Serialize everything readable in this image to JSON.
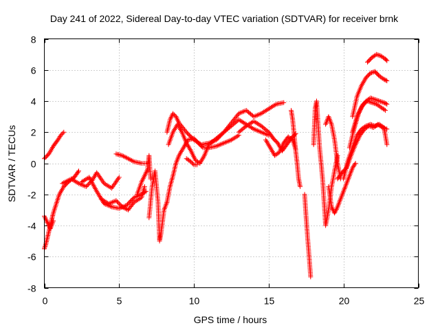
{
  "chart_data": {
    "type": "scatter",
    "title": "Day 241 of 2022, Sidereal Day-to-day VTEC variation (SDTVAR) for receiver brnk",
    "xlabel": "GPS time / hours",
    "ylabel": "SDTVAR / TECUs",
    "xlim": [
      0,
      25
    ],
    "ylim": [
      -8,
      8
    ],
    "xticks": [
      0,
      5,
      10,
      15,
      20,
      25
    ],
    "yticks": [
      -8,
      -6,
      -4,
      -2,
      0,
      2,
      4,
      6,
      8
    ],
    "xtick_labels": [
      "0",
      "5",
      "10",
      "15",
      "20",
      "25"
    ],
    "ytick_labels": [
      "-8",
      "-6",
      "-4",
      "-2",
      "0",
      "2",
      "4",
      "6",
      "8"
    ],
    "grid": true,
    "marker": "plus",
    "color": "#ff0000",
    "series": [
      {
        "name": "s1",
        "x": [
          0.0,
          0.3,
          0.6,
          0.9,
          1.1,
          1.3
        ],
        "y": [
          0.3,
          0.6,
          1.1,
          1.5,
          1.8,
          2.0
        ]
      },
      {
        "name": "s2",
        "x": [
          0.0,
          0.1,
          0.2,
          0.3,
          0.4,
          0.5,
          0.6,
          0.8,
          1.0,
          1.3,
          1.6,
          2.0,
          2.3
        ],
        "y": [
          -5.5,
          -5.2,
          -4.8,
          -4.4,
          -4.0,
          -3.6,
          -3.2,
          -2.6,
          -2.0,
          -1.5,
          -1.2,
          -0.9,
          -0.5
        ]
      },
      {
        "name": "s3",
        "x": [
          0.0,
          0.2,
          0.4,
          0.6
        ],
        "y": [
          -3.4,
          -3.8,
          -4.2,
          -3.7
        ]
      },
      {
        "name": "s4",
        "x": [
          1.2,
          1.8,
          2.3,
          2.8,
          3.2,
          3.5,
          4.0,
          4.5,
          5.0
        ],
        "y": [
          -1.3,
          -1.0,
          -1.3,
          -1.5,
          -1.1,
          -0.6,
          -1.3,
          -1.6,
          -0.9
        ]
      },
      {
        "name": "s5",
        "x": [
          2.5,
          3.0,
          3.5,
          4.0,
          4.5,
          5.0,
          5.5,
          6.0,
          6.5,
          6.8
        ],
        "y": [
          -1.2,
          -0.9,
          -1.8,
          -2.6,
          -2.8,
          -2.9,
          -2.7,
          -2.2,
          -2.0,
          -1.8
        ]
      },
      {
        "name": "s6",
        "x": [
          3.8,
          4.3,
          4.8,
          5.2,
          5.6,
          6.0,
          6.5,
          6.7
        ],
        "y": [
          -2.3,
          -2.6,
          -2.4,
          -2.8,
          -3.0,
          -2.5,
          -2.2,
          -1.5
        ]
      },
      {
        "name": "s7",
        "x": [
          4.8,
          5.2,
          5.6,
          6.0,
          6.5,
          6.9
        ],
        "y": [
          0.6,
          0.5,
          0.3,
          0.1,
          0.0,
          0.0
        ]
      },
      {
        "name": "s8",
        "x": [
          6.2,
          6.5,
          6.7,
          6.9,
          7.0,
          7.1
        ],
        "y": [
          -2.0,
          -1.2,
          -0.8,
          -0.4,
          0.5,
          -1.0
        ]
      },
      {
        "name": "s9",
        "x": [
          7.0,
          7.2,
          7.4,
          7.6,
          7.7,
          7.8,
          8.0,
          8.2
        ],
        "y": [
          -3.5,
          -1.5,
          -0.5,
          -2.5,
          -5.0,
          -4.5,
          -3.0,
          -2.5
        ]
      },
      {
        "name": "s10",
        "x": [
          8.2,
          8.4,
          8.6,
          8.8,
          9.0,
          9.3,
          9.6,
          10.0,
          10.3,
          10.6,
          11.0,
          11.5,
          12.0,
          12.5,
          13.0
        ],
        "y": [
          -2.5,
          -1.5,
          -0.8,
          0.0,
          0.5,
          1.0,
          1.5,
          1.6,
          1.3,
          1.0,
          1.0,
          1.1,
          1.3,
          1.5,
          1.8
        ]
      },
      {
        "name": "s11",
        "x": [
          8.2,
          8.4,
          8.6,
          8.8,
          9.0,
          9.5,
          10.0,
          10.5,
          11.0,
          11.5,
          12.0,
          12.5,
          13.0,
          13.5,
          14.0,
          14.5,
          15.0,
          15.5,
          16.0
        ],
        "y": [
          2.0,
          2.8,
          3.2,
          3.0,
          2.6,
          2.0,
          1.5,
          1.2,
          1.3,
          1.5,
          2.0,
          2.6,
          3.2,
          3.4,
          3.0,
          3.2,
          3.5,
          3.8,
          3.9
        ]
      },
      {
        "name": "s12",
        "x": [
          8.3,
          8.6,
          8.9,
          9.2,
          9.5,
          9.8,
          10.1,
          10.4,
          10.7,
          11.0,
          11.5,
          12.0,
          12.5,
          13.0,
          13.5,
          14.0,
          14.5,
          15.0
        ],
        "y": [
          1.2,
          2.0,
          2.5,
          2.0,
          1.3,
          0.8,
          0.2,
          0.0,
          0.5,
          1.2,
          1.6,
          2.0,
          2.4,
          2.8,
          2.5,
          2.2,
          2.0,
          1.8
        ]
      },
      {
        "name": "s13",
        "x": [
          9.5,
          9.8,
          10.0,
          10.2
        ],
        "y": [
          0.3,
          0.1,
          -0.1,
          -0.1
        ]
      },
      {
        "name": "s14",
        "x": [
          13.0,
          13.5,
          14.0,
          14.5,
          15.0,
          15.3,
          15.6,
          15.9,
          16.2,
          16.5,
          16.8
        ],
        "y": [
          2.0,
          2.4,
          2.7,
          2.4,
          2.0,
          1.6,
          1.3,
          0.8,
          1.2,
          1.6,
          1.9
        ]
      },
      {
        "name": "s15",
        "x": [
          14.8,
          15.1,
          15.4,
          15.7,
          16.0,
          16.3,
          16.6,
          16.8
        ],
        "y": [
          1.5,
          1.0,
          0.5,
          0.7,
          1.3,
          1.7,
          1.5,
          0.9
        ]
      },
      {
        "name": "s16",
        "x": [
          16.5,
          16.6,
          16.7,
          16.8,
          16.9,
          17.0,
          17.1
        ],
        "y": [
          3.4,
          2.8,
          1.8,
          0.8,
          0.0,
          -1.0,
          -1.5
        ]
      },
      {
        "name": "s17",
        "x": [
          17.4,
          17.5,
          17.6,
          17.7,
          17.8
        ],
        "y": [
          -2.0,
          -3.5,
          -4.8,
          -6.0,
          -7.3
        ]
      },
      {
        "name": "s18",
        "x": [
          18.0,
          18.1,
          18.2,
          18.3,
          18.4,
          18.5,
          18.6,
          18.7,
          18.8,
          19.0,
          19.2,
          19.4,
          19.6
        ],
        "y": [
          1.2,
          3.5,
          4.0,
          2.5,
          1.0,
          0.0,
          -1.0,
          -2.5,
          -4.0,
          -3.0,
          -1.5,
          -0.5,
          0.5
        ]
      },
      {
        "name": "s19",
        "x": [
          18.8,
          19.0,
          19.2,
          19.4,
          19.6,
          19.8
        ],
        "y": [
          2.5,
          3.0,
          2.5,
          1.5,
          0.0,
          -1.0
        ]
      },
      {
        "name": "s20",
        "x": [
          19.0,
          19.2,
          19.4,
          19.6,
          19.8,
          20.0,
          20.2,
          20.4,
          20.6,
          20.8
        ],
        "y": [
          -1.5,
          -2.8,
          -3.2,
          -2.8,
          -2.3,
          -1.8,
          -1.3,
          -0.8,
          -0.3,
          0.0
        ]
      },
      {
        "name": "s21",
        "x": [
          19.6,
          19.9,
          20.2,
          20.5,
          20.8,
          21.1,
          21.4,
          21.7,
          22.0,
          22.3,
          22.6,
          22.9
        ],
        "y": [
          -1.0,
          -0.6,
          -0.3,
          0.5,
          1.2,
          1.8,
          2.2,
          2.4,
          2.3,
          2.5,
          2.3,
          2.2
        ]
      },
      {
        "name": "s22",
        "x": [
          20.0,
          20.3,
          20.6,
          20.9,
          21.2,
          21.5,
          21.8,
          22.1,
          22.4,
          22.7,
          22.9
        ],
        "y": [
          -1.0,
          0.2,
          1.0,
          1.8,
          2.2,
          2.4,
          2.5,
          2.4,
          2.5,
          2.3,
          1.2
        ]
      },
      {
        "name": "s23",
        "x": [
          20.4,
          20.7,
          21.0,
          21.3,
          21.6,
          21.9,
          22.2,
          22.5,
          22.8
        ],
        "y": [
          1.0,
          2.2,
          3.2,
          3.8,
          4.0,
          3.9,
          3.8,
          3.6,
          3.4
        ]
      },
      {
        "name": "s24",
        "x": [
          20.6,
          20.9,
          21.2,
          21.5,
          21.8,
          22.1,
          22.4,
          22.7,
          22.9
        ],
        "y": [
          2.0,
          3.0,
          3.6,
          4.0,
          4.2,
          4.1,
          4.0,
          3.9,
          3.8
        ]
      },
      {
        "name": "s25",
        "x": [
          20.6,
          20.9,
          21.2,
          21.5,
          21.8,
          22.1,
          22.4,
          22.7,
          22.9
        ],
        "y": [
          3.0,
          4.3,
          5.0,
          5.5,
          5.8,
          5.9,
          5.6,
          5.4,
          5.3
        ]
      },
      {
        "name": "s26",
        "x": [
          21.6,
          21.9,
          22.2,
          22.5,
          22.8,
          22.9
        ],
        "y": [
          6.5,
          6.8,
          7.0,
          6.9,
          6.7,
          6.6
        ]
      }
    ]
  }
}
